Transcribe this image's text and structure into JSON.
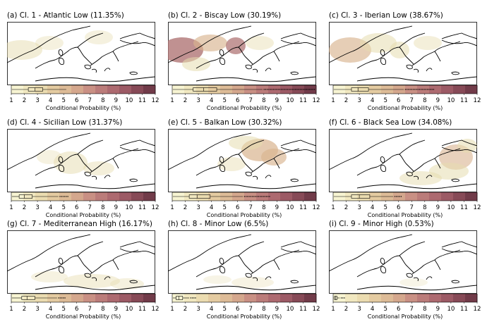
{
  "panels": [
    {
      "title": "(a) Cl. 1 - Atlantic Low (11.35%)"
    },
    {
      "title": "(b) Cl. 2 - Biscay Low (30.19%)"
    },
    {
      "title": "(c) Cl. 3 - Iberian Low (38.67%)"
    },
    {
      "title": "(d) Cl. 4 - Sicilian Low (31.37%)"
    },
    {
      "title": "(e) Cl. 5 - Balkan Low (30.32%)"
    },
    {
      "title": "(f) Cl. 6 - Black Sea Low (34.08%)"
    },
    {
      "title": "(g) Cl. 7 - Mediterranean High (16.17%)"
    },
    {
      "title": "(h) Cl. 8 - Minor Low (6.5%)"
    },
    {
      "title": "(i) Cl. 9 - Minor High (0.53%)"
    }
  ],
  "colorbar": {
    "label": "Conditional Probability (%)",
    "ticks": [
      "1",
      "2",
      "3",
      "4",
      "5",
      "6",
      "7",
      "8",
      "9",
      "10",
      "11",
      "12"
    ],
    "colors": [
      "#f7f4d2",
      "#f1e8c0",
      "#ebdcb0",
      "#e4cba1",
      "#ddbb97",
      "#d4a78d",
      "#c99084",
      "#bb7c7a",
      "#ad6a70",
      "#9c5a65",
      "#874a57",
      "#713b49"
    ]
  },
  "boxplots": [
    {
      "panel": 0,
      "q1": 2.3,
      "median": 2.8,
      "q3": 3.4,
      "whisker_high": 5.2
    },
    {
      "panel": 1,
      "q1": 2.6,
      "median": 3.4,
      "q3": 4.4,
      "whisker_high": 7.9,
      "outliers_to": 11.9
    },
    {
      "panel": 2,
      "q1": 2.4,
      "median": 2.9,
      "q3": 3.7,
      "whisker_high": 6.4,
      "outliers_to": 8.7
    },
    {
      "panel": 3,
      "q1": 1.6,
      "median": 2.0,
      "q3": 2.6,
      "whisker_high": 4.6,
      "outliers_to": 5.4
    },
    {
      "panel": 4,
      "q1": 2.3,
      "median": 2.9,
      "q3": 3.9,
      "whisker_high": 6.4,
      "outliers_to": 8.5
    },
    {
      "panel": 5,
      "q1": 2.4,
      "median": 3.0,
      "q3": 3.8,
      "whisker_high": 5.6,
      "outliers_to": 6.2
    },
    {
      "panel": 6,
      "q1": 1.8,
      "median": 2.2,
      "q3": 2.8,
      "whisker_high": 4.5,
      "outliers_to": 5.2
    },
    {
      "panel": 7,
      "q1": 1.3,
      "median": 1.5,
      "q3": 1.8,
      "whisker_high": 2.3,
      "outliers_to": 2.9
    },
    {
      "panel": 8,
      "q1": 1.1,
      "median": 1.2,
      "q3": 1.3,
      "whisker_high": 1.5,
      "outliers_to": 1.9
    }
  ]
}
